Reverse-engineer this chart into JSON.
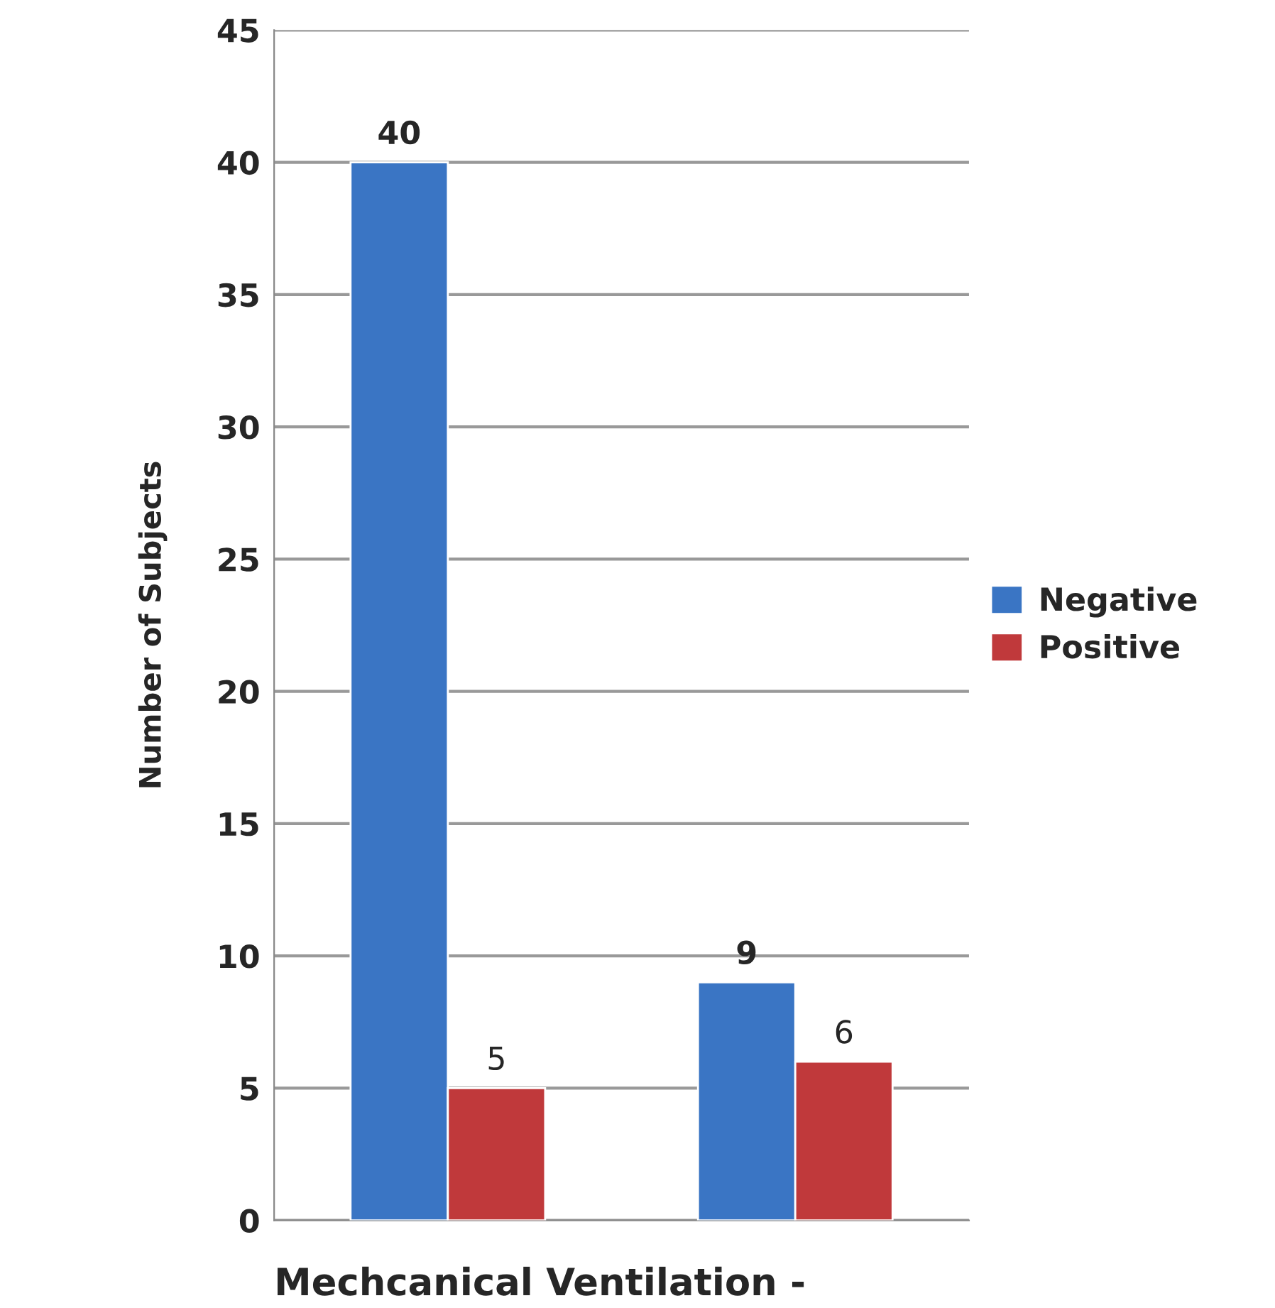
{
  "chart_data": {
    "type": "bar",
    "xlabel": "Mechcanical Ventilation -",
    "ylabel": "Number of Subjects",
    "categories": [
      null,
      null
    ],
    "series": [
      {
        "name": "Negative",
        "color": "#3a75c4",
        "values": [
          40,
          9
        ]
      },
      {
        "name": "Positive",
        "color": "#c0393b",
        "values": [
          5,
          6
        ]
      }
    ],
    "ylim": [
      0,
      45
    ],
    "yticks": [
      0,
      5,
      10,
      15,
      20,
      25,
      30,
      35,
      40,
      45
    ],
    "grid": "y",
    "legend": "right",
    "data_labels": true
  }
}
